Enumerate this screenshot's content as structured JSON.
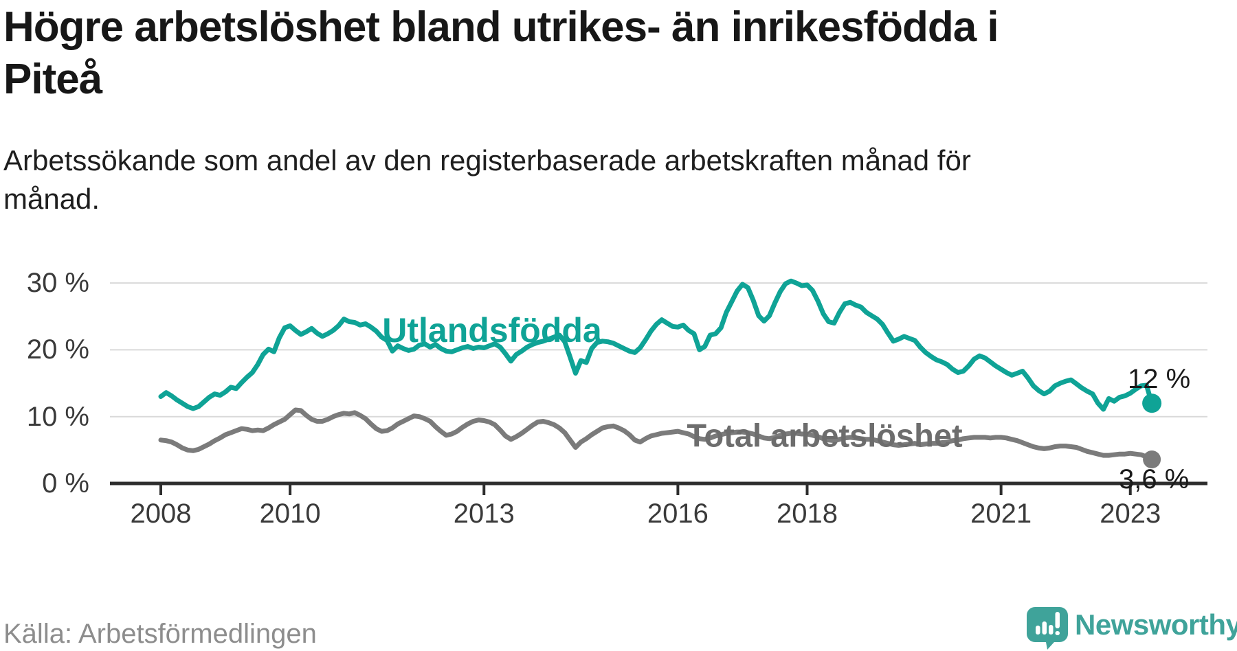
{
  "header": {
    "title_lines": [
      "Högre arbetslöshet bland utrikes- än inrikesfödda i",
      "Piteå"
    ],
    "subtitle_lines": [
      "Arbetssökande som andel av den registerbaserade arbetskraften månad för",
      "månad."
    ]
  },
  "footer": {
    "source": "Källa: Arbetsförmedlingen",
    "brand": {
      "name": "Newsworthy",
      "icon": "bar-chart-speech-bubble-icon",
      "color": "#3fa39a"
    }
  },
  "chart_data": {
    "type": "line",
    "title": "Högre arbetslöshet bland utrikes- än inrikesfödda i Piteå",
    "unit": "%",
    "x_start_year": 2008,
    "x_interval": "monthly",
    "x_tick_years": [
      2008,
      2010,
      2013,
      2016,
      2018,
      2021,
      2023
    ],
    "y_ticks": [
      {
        "value": 0,
        "label": "0 %"
      },
      {
        "value": 10,
        "label": "10 %"
      },
      {
        "value": 20,
        "label": "20 %"
      },
      {
        "value": 30,
        "label": "30 %"
      }
    ],
    "ylim": [
      0,
      32
    ],
    "grid": "horizontal",
    "legend": "inline-labels",
    "series": [
      {
        "name": "Utlandsfödda",
        "color": "#0fa396",
        "label_color": "#0fa396",
        "end_label": "12 %",
        "end_value": 12.0,
        "values": [
          13.0,
          13.6,
          13.1,
          12.5,
          12.0,
          11.5,
          11.2,
          11.5,
          12.2,
          12.9,
          13.4,
          13.2,
          13.7,
          14.4,
          14.2,
          15.1,
          15.9,
          16.6,
          17.8,
          19.3,
          20.1,
          19.7,
          21.8,
          23.3,
          23.6,
          22.9,
          22.3,
          22.7,
          23.2,
          22.5,
          22.0,
          22.4,
          22.9,
          23.6,
          24.6,
          24.2,
          24.1,
          23.7,
          23.9,
          23.4,
          22.8,
          21.9,
          21.4,
          19.8,
          20.6,
          20.2,
          19.9,
          20.1,
          20.7,
          20.9,
          20.4,
          20.8,
          20.2,
          19.8,
          19.7,
          20.0,
          20.3,
          20.5,
          20.2,
          20.4,
          20.3,
          20.6,
          20.9,
          20.4,
          19.4,
          18.3,
          19.3,
          19.8,
          20.4,
          20.8,
          21.1,
          21.3,
          21.6,
          21.9,
          22.2,
          21.2,
          18.9,
          16.5,
          18.4,
          18.1,
          20.2,
          21.1,
          21.3,
          21.2,
          21.0,
          20.6,
          20.2,
          19.8,
          19.6,
          20.3,
          21.5,
          22.8,
          23.8,
          24.5,
          24.0,
          23.5,
          23.4,
          23.7,
          22.9,
          22.4,
          20.0,
          20.5,
          22.2,
          22.4,
          23.3,
          25.6,
          27.2,
          28.8,
          29.8,
          29.3,
          27.4,
          25.1,
          24.3,
          25.1,
          27.0,
          28.7,
          29.9,
          30.3,
          30.0,
          29.6,
          29.7,
          28.9,
          27.3,
          25.4,
          24.2,
          24.0,
          25.6,
          26.9,
          27.1,
          26.7,
          26.4,
          25.6,
          25.1,
          24.6,
          23.8,
          22.5,
          21.3,
          21.6,
          22.0,
          21.7,
          21.4,
          20.4,
          19.6,
          19.0,
          18.5,
          18.2,
          17.8,
          17.1,
          16.6,
          16.8,
          17.6,
          18.6,
          19.1,
          18.8,
          18.2,
          17.6,
          17.1,
          16.6,
          16.2,
          16.5,
          16.8,
          15.8,
          14.6,
          13.9,
          13.4,
          13.8,
          14.6,
          15.0,
          15.3,
          15.5,
          14.9,
          14.3,
          13.8,
          13.4,
          12.0,
          11.1,
          12.7,
          12.3,
          12.9,
          13.1,
          13.5,
          14.1,
          14.6,
          14.7,
          12.0
        ]
      },
      {
        "name": "Total arbetslöshet",
        "color": "#7b7b7b",
        "label_color": "#6d6d6d",
        "end_label": "3,6 %",
        "end_value": 3.6,
        "values": [
          6.5,
          6.4,
          6.2,
          5.8,
          5.3,
          5.0,
          4.9,
          5.1,
          5.5,
          5.9,
          6.4,
          6.8,
          7.3,
          7.6,
          7.9,
          8.2,
          8.1,
          7.9,
          8.0,
          7.9,
          8.3,
          8.8,
          9.2,
          9.6,
          10.3,
          11.0,
          10.9,
          10.2,
          9.6,
          9.3,
          9.3,
          9.6,
          10.0,
          10.3,
          10.5,
          10.4,
          10.6,
          10.2,
          9.7,
          8.9,
          8.2,
          7.8,
          7.9,
          8.3,
          8.9,
          9.3,
          9.7,
          10.1,
          10.0,
          9.7,
          9.3,
          8.5,
          7.8,
          7.2,
          7.4,
          7.8,
          8.4,
          8.9,
          9.3,
          9.5,
          9.4,
          9.2,
          8.8,
          8.0,
          7.1,
          6.6,
          7.0,
          7.5,
          8.1,
          8.7,
          9.2,
          9.3,
          9.1,
          8.8,
          8.3,
          7.6,
          6.5,
          5.4,
          6.2,
          6.7,
          7.3,
          7.8,
          8.3,
          8.5,
          8.6,
          8.3,
          7.9,
          7.3,
          6.5,
          6.2,
          6.7,
          7.1,
          7.3,
          7.5,
          7.6,
          7.7,
          7.8,
          7.6,
          7.4,
          7.0,
          6.7,
          6.6,
          6.8,
          7.1,
          7.3,
          7.5,
          7.6,
          7.7,
          7.7,
          7.6,
          7.4,
          7.1,
          6.8,
          6.7,
          6.9,
          7.2,
          7.4,
          7.5,
          7.5,
          7.4,
          7.4,
          7.2,
          7.0,
          6.7,
          6.5,
          6.4,
          6.6,
          6.8,
          6.9,
          6.8,
          6.7,
          6.6,
          6.6,
          6.4,
          6.2,
          6.0,
          5.8,
          5.7,
          5.8,
          5.9,
          6.0,
          5.8,
          5.9,
          6.0,
          6.0,
          6.1,
          6.2,
          6.4,
          6.5,
          6.7,
          6.8,
          6.9,
          6.9,
          6.9,
          6.8,
          6.9,
          6.9,
          6.8,
          6.6,
          6.4,
          6.1,
          5.8,
          5.5,
          5.3,
          5.2,
          5.3,
          5.5,
          5.6,
          5.6,
          5.5,
          5.4,
          5.1,
          4.8,
          4.6,
          4.4,
          4.2,
          4.2,
          4.3,
          4.4,
          4.4,
          4.5,
          4.4,
          4.3,
          4.0,
          3.6
        ]
      }
    ]
  }
}
